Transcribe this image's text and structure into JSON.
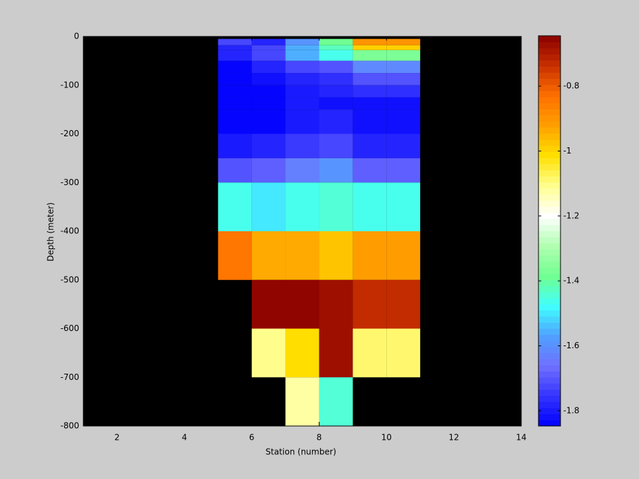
{
  "chart_data": {
    "type": "heatmap",
    "xlabel": "Station (number)",
    "ylabel": "Depth (meter)",
    "xlim": [
      1,
      14
    ],
    "xticks": [
      2,
      4,
      6,
      8,
      10,
      12,
      14
    ],
    "ylim": [
      -800,
      0
    ],
    "yticks": [
      0,
      -100,
      -200,
      -300,
      -400,
      -500,
      -600,
      -700,
      -800
    ],
    "x_edges": [
      5,
      6,
      7,
      8,
      9,
      10,
      11
    ],
    "y_edges": [
      -5,
      -18,
      -28,
      -50,
      -75,
      -100,
      -125,
      -150,
      -200,
      -250,
      -300,
      -400,
      -500,
      -600,
      -700,
      -800
    ],
    "values": [
      [
        -1.72,
        -1.78,
        -1.6,
        -1.38,
        -0.9,
        -0.9
      ],
      [
        -1.79,
        -1.72,
        -1.55,
        -1.43,
        -1.0,
        -1.0
      ],
      [
        -1.79,
        -1.72,
        -1.55,
        -1.47,
        -1.37,
        -1.37
      ],
      [
        -1.83,
        -1.79,
        -1.72,
        -1.7,
        -1.62,
        -1.62
      ],
      [
        -1.84,
        -1.82,
        -1.78,
        -1.77,
        -1.7,
        -1.7
      ],
      [
        -1.84,
        -1.84,
        -1.8,
        -1.79,
        -1.77,
        -1.77
      ],
      [
        -1.84,
        -1.84,
        -1.8,
        -1.81,
        -1.81,
        -1.81
      ],
      [
        -1.84,
        -1.84,
        -1.8,
        -1.78,
        -1.81,
        -1.81
      ],
      [
        -1.8,
        -1.78,
        -1.75,
        -1.73,
        -1.78,
        -1.78
      ],
      [
        -1.71,
        -1.68,
        -1.64,
        -1.6,
        -1.68,
        -1.68
      ],
      [
        -1.47,
        -1.5,
        -1.47,
        -1.45,
        -1.47,
        -1.47
      ],
      [
        -0.85,
        -0.93,
        -0.93,
        -0.98,
        -0.91,
        -0.91
      ],
      [
        null,
        -0.65,
        -0.65,
        -0.67,
        -0.73,
        -0.73
      ],
      [
        null,
        -1.1,
        -1.02,
        -0.67,
        -1.08,
        -1.08
      ],
      [
        null,
        null,
        -1.13,
        -1.45,
        null,
        null
      ]
    ],
    "clim": [
      -1.847,
      -0.645
    ],
    "cticks": [
      -0.8,
      -1,
      -1.2,
      -1.4,
      -1.6,
      -1.8
    ],
    "colormap": [
      "#0000ff",
      "#3333ff",
      "#7070ff",
      "#50a0ff",
      "#40ffff",
      "#70ff90",
      "#b0ffb0",
      "#ffffff",
      "#ffff90",
      "#ffe000",
      "#ffa000",
      "#ff7000",
      "#c83000",
      "#8b0000"
    ],
    "colormap_levels": 64,
    "background": "#000000"
  }
}
